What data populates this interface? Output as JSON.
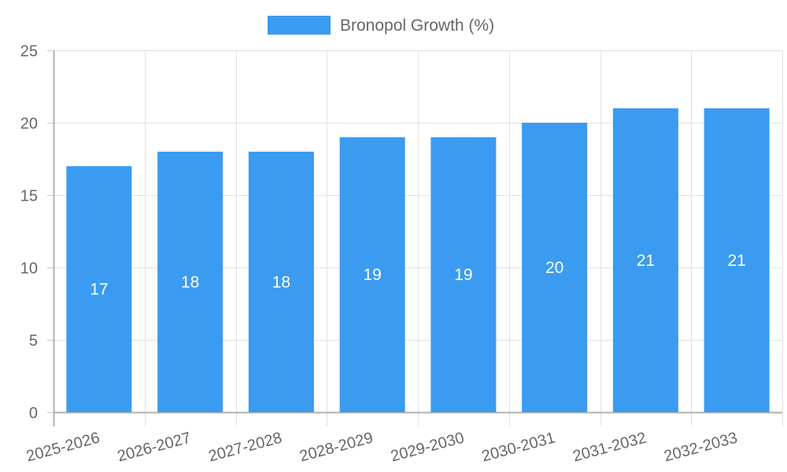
{
  "legend": {
    "label": "Bronopol Growth (%)",
    "color": "#3a9bf0"
  },
  "chart_data": {
    "type": "bar",
    "title": "",
    "xlabel": "",
    "ylabel": "",
    "categories": [
      "2025-2026",
      "2026-2027",
      "2027-2028",
      "2028-2029",
      "2029-2030",
      "2030-2031",
      "2031-2032",
      "2032-2033"
    ],
    "series": [
      {
        "name": "Bronopol Growth (%)",
        "values": [
          17,
          18,
          18,
          19,
          19,
          20,
          21,
          21
        ],
        "color": "#3a9bf0"
      }
    ],
    "ylim": [
      0,
      25
    ],
    "yticks": [
      0,
      5,
      10,
      15,
      20,
      25
    ],
    "grid": true,
    "legend_position": "top",
    "data_labels": true
  }
}
